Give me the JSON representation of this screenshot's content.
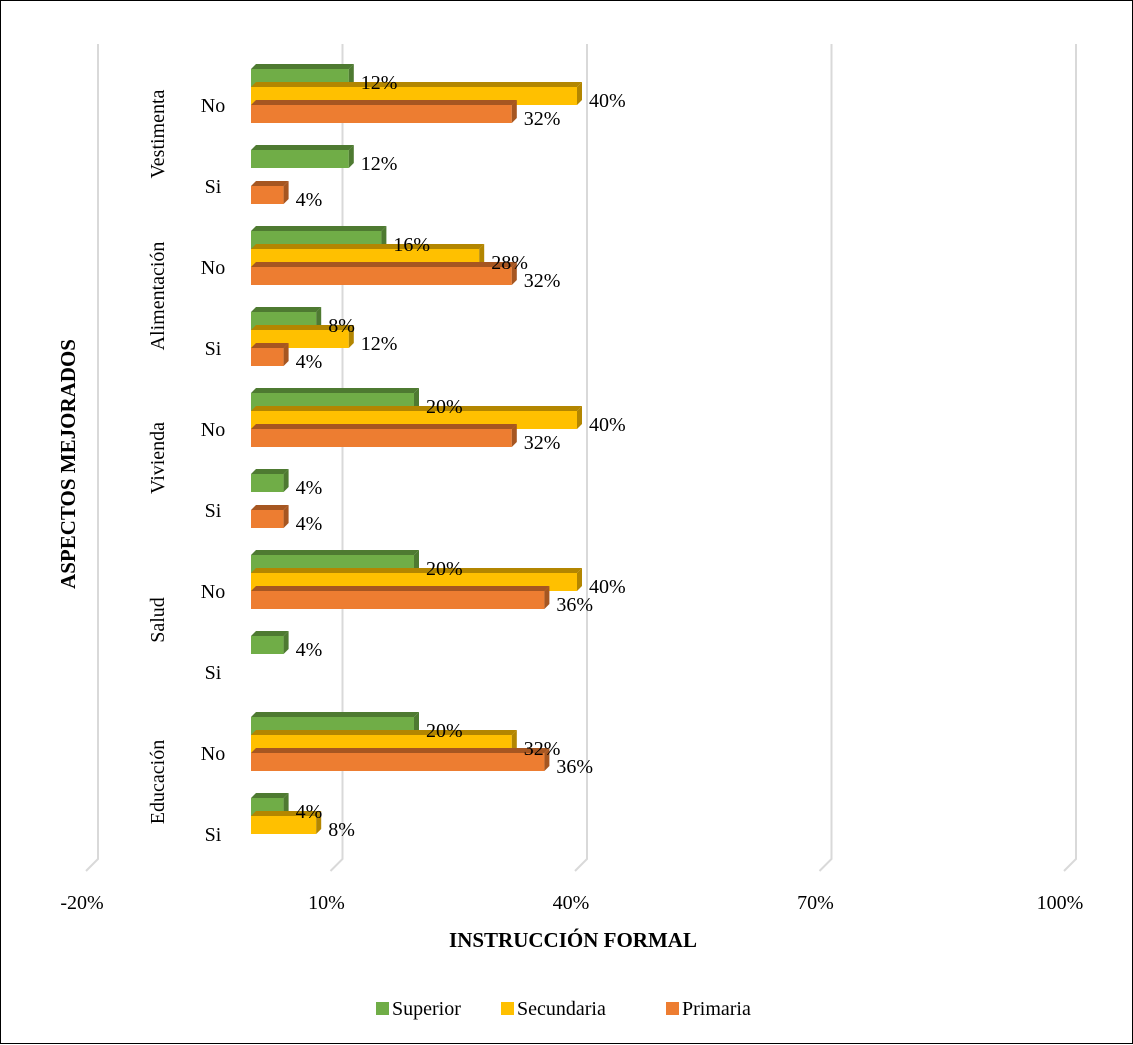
{
  "chart_data": {
    "type": "bar",
    "orientation": "horizontal",
    "style": "3d-clustered",
    "xlabel": "INSTRUCCIÓN FORMAL",
    "ylabel": "ASPECTOS MEJORADOS",
    "xlim": [
      -0.2,
      1.0
    ],
    "x_ticks": [
      -0.2,
      0.1,
      0.4,
      0.7,
      1.0
    ],
    "x_tick_labels": [
      "-20%",
      "10%",
      "40%",
      "70%",
      "100%"
    ],
    "gridlines": "vertical",
    "legend_position": "bottom",
    "groups": [
      {
        "label": "Vestimenta",
        "subcategories": [
          {
            "label": "No",
            "values": {
              "Superior": 0.12,
              "Secundaria": 0.4,
              "Primaria": 0.32
            }
          },
          {
            "label": "Si",
            "values": {
              "Superior": 0.12,
              "Secundaria": null,
              "Primaria": 0.04
            }
          }
        ]
      },
      {
        "label": "Alimentación",
        "subcategories": [
          {
            "label": "No",
            "values": {
              "Superior": 0.16,
              "Secundaria": 0.28,
              "Primaria": 0.32
            }
          },
          {
            "label": "Si",
            "values": {
              "Superior": 0.08,
              "Secundaria": 0.12,
              "Primaria": 0.04
            }
          }
        ]
      },
      {
        "label": "Vivienda",
        "subcategories": [
          {
            "label": "No",
            "values": {
              "Superior": 0.2,
              "Secundaria": 0.4,
              "Primaria": 0.32
            }
          },
          {
            "label": "Si",
            "values": {
              "Superior": 0.04,
              "Secundaria": null,
              "Primaria": 0.04
            }
          }
        ]
      },
      {
        "label": "Salud",
        "subcategories": [
          {
            "label": "No",
            "values": {
              "Superior": 0.2,
              "Secundaria": 0.4,
              "Primaria": 0.36
            }
          },
          {
            "label": "Si",
            "values": {
              "Superior": 0.04,
              "Secundaria": null,
              "Primaria": null
            }
          }
        ]
      },
      {
        "label": "Educación",
        "subcategories": [
          {
            "label": "No",
            "values": {
              "Superior": 0.2,
              "Secundaria": 0.32,
              "Primaria": 0.36
            }
          },
          {
            "label": "Si",
            "values": {
              "Superior": 0.04,
              "Secundaria": 0.08,
              "Primaria": null
            }
          }
        ]
      }
    ],
    "series": [
      {
        "name": "Superior",
        "color": "#70AD47",
        "side_color": "#4E7A31"
      },
      {
        "name": "Secundaria",
        "color": "#FFC000",
        "side_color": "#B38600"
      },
      {
        "name": "Primaria",
        "color": "#ED7D31",
        "side_color": "#A65621"
      }
    ]
  }
}
